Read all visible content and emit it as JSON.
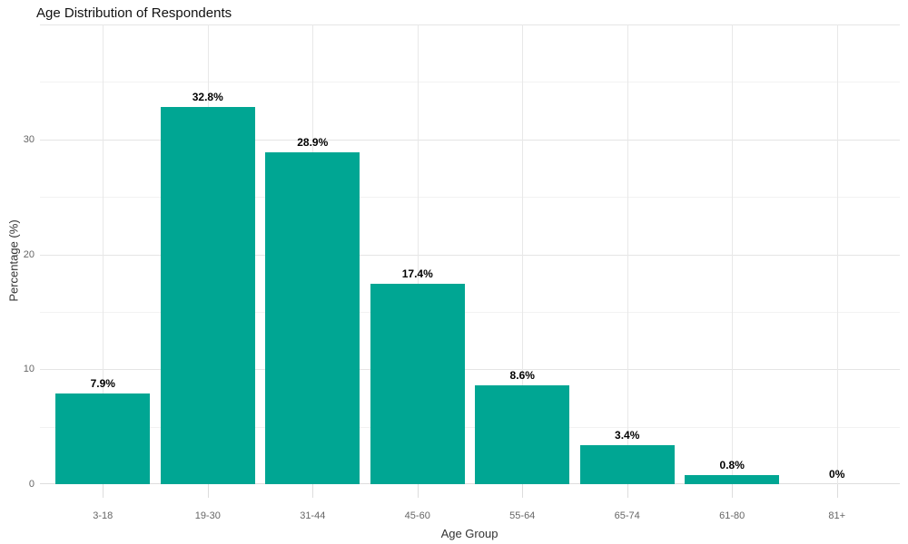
{
  "chart_data": {
    "type": "bar",
    "title": "Age Distribution of Respondents",
    "xlabel": "Age Group",
    "ylabel": "Percentage (%)",
    "categories": [
      "3-18",
      "19-30",
      "31-44",
      "45-60",
      "55-64",
      "65-74",
      "61-80",
      "81+"
    ],
    "values": [
      7.9,
      32.8,
      28.9,
      17.4,
      8.6,
      3.4,
      0.8,
      0
    ],
    "value_labels": [
      "7.9%",
      "32.8%",
      "28.9%",
      "17.4%",
      "8.6%",
      "3.4%",
      "0.8%",
      "0%"
    ],
    "ylim": [
      0,
      40
    ],
    "ytick_labels": [
      "0",
      "10",
      "20",
      "30"
    ],
    "ytick_values": [
      0,
      10,
      20,
      30
    ],
    "ygrid_major": [
      10,
      20,
      30,
      40
    ],
    "ygrid_minor": [
      5,
      15,
      25,
      35
    ],
    "grid": "on",
    "legend": "none",
    "background": "#ffffff",
    "colors": {
      "bar": "#00A693",
      "grid_major": "#e5e5e5",
      "grid_minor": "#f2f2f2",
      "grid_vertical": "#e8e8e8",
      "baseline": "#dddddd",
      "tick_mark": "#dddddd",
      "tick_label": "#666666",
      "axis_title": "#333333",
      "title": "#111111",
      "value_label": "#000000"
    }
  }
}
